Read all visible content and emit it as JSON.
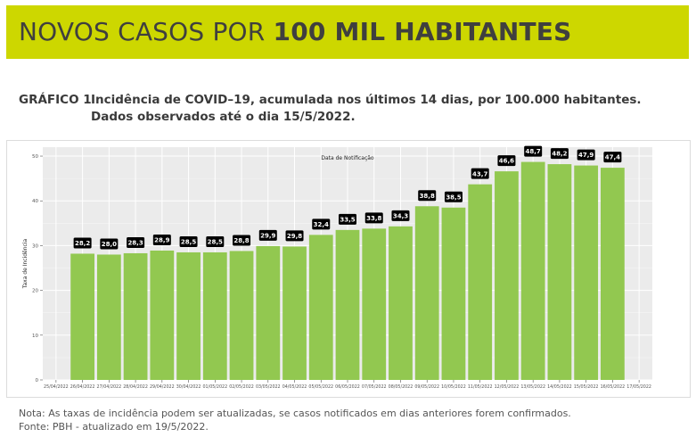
{
  "banner": {
    "title_normal": "NOVOS CASOS POR ",
    "title_bold": "100 MIL HABITANTES",
    "color": "#cdd700"
  },
  "caption": {
    "number": "GRÁFICO 1",
    "line1": "Incidência de COVID–19, acumulada nos últimos 14 dias, por 100.000 habitantes.",
    "line2": "Dados observados até o dia 15/5/2022."
  },
  "chart_data": {
    "type": "bar",
    "xlabel": "Data de Notificação",
    "ylabel": "Taxa de Incidência",
    "ylim": [
      0,
      52
    ],
    "yticks": [
      0,
      10,
      20,
      30,
      40,
      50
    ],
    "grid": true,
    "bar_color": "#92c850",
    "panel_color": "#ebebeb",
    "x_tick_labels": [
      "25/04/2022",
      "26/04/2022",
      "27/04/2022",
      "28/04/2022",
      "29/04/2022",
      "30/04/2022",
      "01/05/2022",
      "02/05/2022",
      "03/05/2022",
      "04/05/2022",
      "05/05/2022",
      "06/05/2022",
      "07/05/2022",
      "08/05/2022",
      "09/05/2022",
      "10/05/2022",
      "11/05/2022",
      "12/05/2022",
      "13/05/2022",
      "14/05/2022",
      "15/05/2022",
      "16/05/2022",
      "17/05/2022"
    ],
    "categories": [
      "26/04/2022",
      "27/04/2022",
      "28/04/2022",
      "29/04/2022",
      "30/04/2022",
      "01/05/2022",
      "02/05/2022",
      "03/05/2022",
      "04/05/2022",
      "05/05/2022",
      "06/05/2022",
      "07/05/2022",
      "08/05/2022",
      "09/05/2022",
      "10/05/2022",
      "11/05/2022",
      "12/05/2022",
      "13/05/2022",
      "14/05/2022",
      "15/05/2022",
      "16/05/2022"
    ],
    "values": [
      28.2,
      28.0,
      28.3,
      28.9,
      28.5,
      28.5,
      28.8,
      29.9,
      29.8,
      32.4,
      33.5,
      33.8,
      34.3,
      38.8,
      38.5,
      43.7,
      46.6,
      48.7,
      48.2,
      47.9,
      47.4
    ],
    "labels": [
      "28,2",
      "28,0",
      "28,3",
      "28,9",
      "28,5",
      "28,5",
      "28,8",
      "29,9",
      "29,8",
      "32,4",
      "33,5",
      "33,8",
      "34,3",
      "38,8",
      "38,5",
      "43,7",
      "46,6",
      "48,7",
      "48,2",
      "47,9",
      "47,4"
    ]
  },
  "notes": {
    "line1": "Nota: As taxas de incidência podem ser atualizadas, se casos notificados em dias anteriores forem confirmados.",
    "line2": "Fonte: PBH - atualizado em 19/5/2022."
  }
}
